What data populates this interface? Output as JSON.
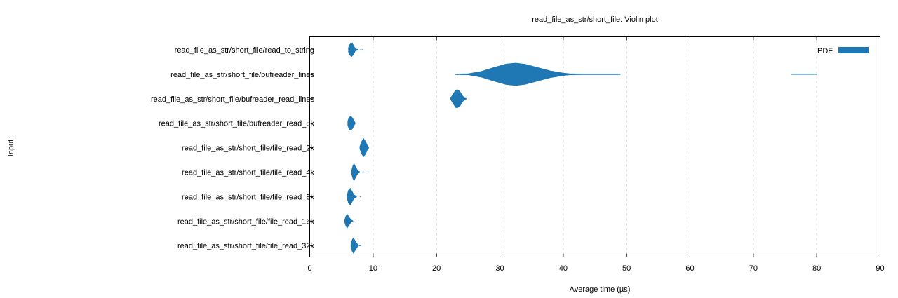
{
  "chart_data": {
    "type": "violin",
    "title": "read_file_as_str/short_file: Violin plot",
    "xlabel": "Average time (µs)",
    "ylabel": "Input",
    "xlim": [
      0,
      90
    ],
    "xticks": [
      "0",
      "10",
      "20",
      "30",
      "40",
      "50",
      "60",
      "70",
      "80",
      "90"
    ],
    "grid": "vertical dashed",
    "legend": {
      "position": "top-right",
      "label": "PDF"
    },
    "color": "#1f77b4",
    "series": [
      {
        "name": "read_file_as_str/short_file/read_to_string",
        "peak": 6.6,
        "min": 6.1,
        "max": 8.4,
        "halfwidth": 10,
        "body": [
          [
            6.1,
            0.3
          ],
          [
            6.3,
            0.75
          ],
          [
            6.6,
            1.0
          ],
          [
            6.9,
            0.7
          ],
          [
            7.2,
            0.15
          ],
          [
            7.6,
            0.05
          ]
        ],
        "tail": [
          [
            7.9,
            8.0
          ],
          [
            8.2,
            8.4
          ]
        ]
      },
      {
        "name": "read_file_as_str/short_file/bufreader_lines",
        "peak": 32.5,
        "min": 23.0,
        "max": 80.0,
        "halfwidth": 16,
        "body": [
          [
            23.0,
            0.0
          ],
          [
            25.0,
            0.05
          ],
          [
            27.0,
            0.25
          ],
          [
            29.0,
            0.6
          ],
          [
            31.0,
            0.92
          ],
          [
            32.5,
            1.0
          ],
          [
            34.0,
            0.9
          ],
          [
            36.0,
            0.6
          ],
          [
            38.0,
            0.3
          ],
          [
            40.0,
            0.12
          ],
          [
            41.0,
            0.05
          ],
          [
            43.0,
            0.03
          ],
          [
            46.0,
            0.03
          ],
          [
            49.0,
            0.03
          ]
        ],
        "tail": [
          [
            76.0,
            80.0
          ]
        ]
      },
      {
        "name": "read_file_as_str/short_file/bufreader_read_lines",
        "peak": 23.3,
        "min": 22.2,
        "max": 24.7,
        "halfwidth": 13,
        "body": [
          [
            22.2,
            0.0
          ],
          [
            22.6,
            0.5
          ],
          [
            23.0,
            0.95
          ],
          [
            23.3,
            1.0
          ],
          [
            23.7,
            0.8
          ],
          [
            24.1,
            0.35
          ],
          [
            24.4,
            0.1
          ],
          [
            24.7,
            0.0
          ]
        ],
        "tail": []
      },
      {
        "name": "read_file_as_str/short_file/bufreader_read_8k",
        "peak": 6.5,
        "min": 6.0,
        "max": 7.2,
        "halfwidth": 10,
        "body": [
          [
            6.0,
            0.3
          ],
          [
            6.2,
            0.85
          ],
          [
            6.5,
            1.0
          ],
          [
            6.8,
            0.7
          ],
          [
            7.0,
            0.3
          ],
          [
            7.2,
            0.05
          ]
        ],
        "tail": []
      },
      {
        "name": "read_file_as_str/short_file/file_read_2k",
        "peak": 8.5,
        "min": 7.9,
        "max": 9.3,
        "halfwidth": 13,
        "body": [
          [
            7.9,
            0.15
          ],
          [
            8.2,
            0.7
          ],
          [
            8.5,
            1.0
          ],
          [
            8.8,
            0.7
          ],
          [
            9.1,
            0.25
          ],
          [
            9.3,
            0.05
          ]
        ],
        "tail": []
      },
      {
        "name": "read_file_as_str/short_file/file_read_4k",
        "peak": 7.0,
        "min": 6.6,
        "max": 9.3,
        "halfwidth": 12,
        "body": [
          [
            6.6,
            0.2
          ],
          [
            6.8,
            0.75
          ],
          [
            7.0,
            1.0
          ],
          [
            7.3,
            0.55
          ],
          [
            7.6,
            0.15
          ],
          [
            7.9,
            0.05
          ]
        ],
        "tail": [
          [
            8.5,
            8.7
          ],
          [
            9.0,
            9.3
          ]
        ]
      },
      {
        "name": "read_file_as_str/short_file/file_read_8k",
        "peak": 6.4,
        "min": 5.9,
        "max": 8.0,
        "halfwidth": 12,
        "body": [
          [
            5.9,
            0.2
          ],
          [
            6.1,
            0.75
          ],
          [
            6.4,
            1.0
          ],
          [
            6.7,
            0.6
          ],
          [
            7.0,
            0.2
          ],
          [
            7.4,
            0.05
          ]
        ],
        "tail": [
          [
            7.9,
            8.0
          ]
        ]
      },
      {
        "name": "read_file_as_str/short_file/file_read_16k",
        "peak": 5.9,
        "min": 5.5,
        "max": 7.0,
        "halfwidth": 10,
        "body": [
          [
            5.5,
            0.15
          ],
          [
            5.7,
            0.7
          ],
          [
            5.9,
            1.0
          ],
          [
            6.2,
            0.6
          ],
          [
            6.5,
            0.2
          ],
          [
            6.8,
            0.05
          ]
        ],
        "tail": [
          [
            6.9,
            7.0
          ]
        ]
      },
      {
        "name": "read_file_as_str/short_file/file_read_32k",
        "peak": 6.9,
        "min": 6.5,
        "max": 8.1,
        "halfwidth": 11,
        "body": [
          [
            6.5,
            0.2
          ],
          [
            6.7,
            0.75
          ],
          [
            6.9,
            1.0
          ],
          [
            7.2,
            0.6
          ],
          [
            7.5,
            0.2
          ],
          [
            7.7,
            0.05
          ]
        ],
        "tail": [
          [
            7.8,
            8.1
          ]
        ]
      }
    ]
  }
}
